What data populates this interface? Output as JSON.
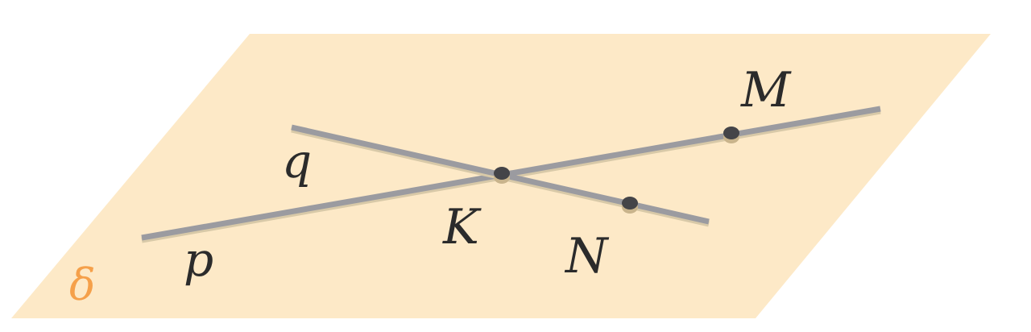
{
  "plane": {
    "label": "δ",
    "fill_color": "#fde9c7",
    "label_color": "#f5a04a"
  },
  "lines": [
    {
      "id": "p",
      "label": "p"
    },
    {
      "id": "q",
      "label": "q"
    }
  ],
  "points": [
    {
      "id": "K",
      "label": "K"
    },
    {
      "id": "M",
      "label": "M"
    },
    {
      "id": "N",
      "label": "N"
    }
  ],
  "colors": {
    "line": "#9b9ba0",
    "line_shadow": "#d8c9a8",
    "point": "#444448",
    "point_shadow": "#c9b48c",
    "label": "#2b2b2b"
  }
}
